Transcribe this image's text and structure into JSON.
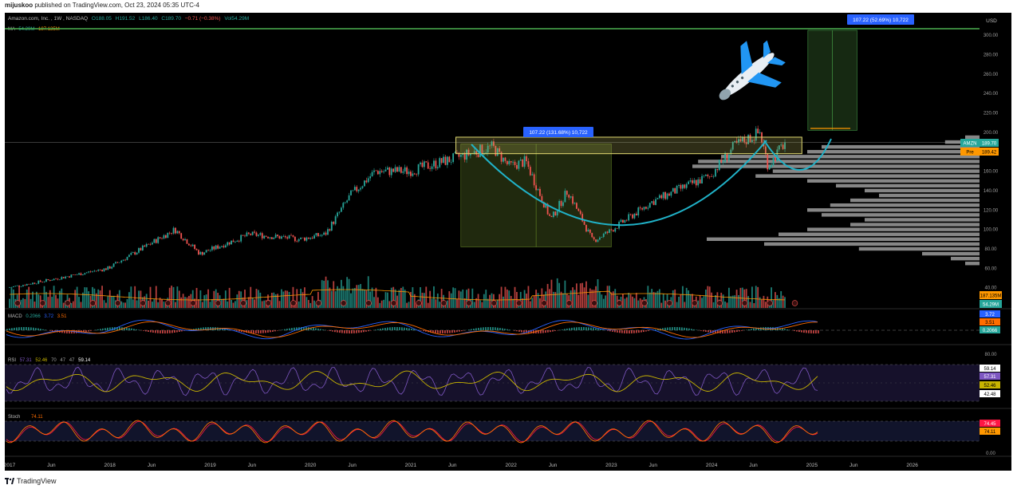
{
  "header": {
    "author": "mijuskoo",
    "published_text": "published on TradingView.com, Oct 23, 2024 05:35 UTC-4"
  },
  "footer": {
    "brand": "TradingView"
  },
  "colors": {
    "background": "#000000",
    "candle_up": "#26a69a",
    "candle_down": "#ef5350",
    "cup_curve": "#20b2c8",
    "range_box_fill": "#3a4a1a",
    "target_box_fill": "#1f3a1a",
    "resistance_box_stroke": "#c9c36a",
    "volume_profile": "#9e9e9e",
    "macd_line": "#2962ff",
    "signal_line": "#ff6d00",
    "rsi_line": "#7e57c2",
    "rsi_ma": "#c8b400",
    "stoch_k": "#ff6d00",
    "stoch_d": "#ff1744",
    "price_label_amzn": "#26a69a",
    "price_label_pre": "#ff9800"
  },
  "chart_data": {
    "type": "candlestick",
    "symbol_line": {
      "name": "Amazon.com, Inc.",
      "interval": "1W",
      "exchange": "NASDAQ",
      "open": "O188.05",
      "high": "H191.52",
      "low": "L186.40",
      "close": "C189.70",
      "change": "−0.71 (−0.38%)",
      "volume": "Vol54.29M"
    },
    "ma_legend": {
      "name": "MA",
      "v1": "54.29M",
      "v2": "187.135M"
    },
    "currency": "USD",
    "x_axis": {
      "labels": [
        "2017",
        "Jun",
        "2018",
        "Jun",
        "2019",
        "Jun",
        "2020",
        "Jun",
        "2021",
        "Jun",
        "2022",
        "Jun",
        "2023",
        "Jun",
        "2024",
        "Jun",
        "2025",
        "Jun",
        "2026"
      ],
      "range": [
        "2017-01",
        "2026-06"
      ]
    },
    "price_axis": {
      "ticks": [
        "300.00",
        "280.00",
        "260.00",
        "240.00",
        "220.00",
        "200.00",
        "180.00",
        "160.00",
        "140.00",
        "120.00",
        "100.00",
        "80.00",
        "60.00",
        "40.00"
      ],
      "range": [
        34,
        305
      ]
    },
    "price_series_weekly_close_approx": {
      "dates": [
        "2017-01",
        "2017-06",
        "2018-01",
        "2018-06",
        "2018-09",
        "2018-12",
        "2019-06",
        "2019-12",
        "2020-03",
        "2020-06",
        "2020-09",
        "2021-01",
        "2021-06",
        "2021-11",
        "2022-01",
        "2022-03",
        "2022-06",
        "2022-08",
        "2022-11",
        "2023-01",
        "2023-06",
        "2023-09",
        "2024-01",
        "2024-04",
        "2024-07",
        "2024-08",
        "2024-10"
      ],
      "values": [
        40,
        48,
        60,
        85,
        100,
        75,
        95,
        90,
        95,
        135,
        160,
        160,
        172,
        185,
        165,
        170,
        110,
        140,
        88,
        98,
        128,
        140,
        155,
        186,
        200,
        165,
        189.7
      ]
    },
    "annotations": {
      "measure_label_1": "107.22 (131.68%) 10,722",
      "measure_label_2": "107.22 (52.69%) 10,722",
      "resistance_zone": [
        178,
        195
      ],
      "cup_range_box_dates": [
        "2021-07",
        "2023-01"
      ],
      "cup_range_box_prices": [
        82,
        188
      ],
      "target_box_price": [
        202,
        305
      ],
      "icon": "airplane-icon"
    },
    "price_labels": [
      {
        "tag": "AMZN",
        "value": "189.70"
      },
      {
        "tag": "Pre",
        "value": "189.42"
      }
    ],
    "volume_labels": [
      {
        "value": "187.135M"
      },
      {
        "value": "54.29M"
      }
    ],
    "macd": {
      "legend": {
        "name": "MACD",
        "hist": "0.2066",
        "macd": "3.72",
        "signal": "3.51"
      },
      "axis_labels": [
        "3.72",
        "3.51",
        "0.2066"
      ]
    },
    "rsi": {
      "legend": {
        "name": "RSI",
        "v1": "57.31",
        "v2": "52.46",
        "v3": "70",
        "v4": "47",
        "v5": "47",
        "v6": "59.14"
      },
      "axis_ticks": [
        "80.00"
      ],
      "axis_labels": [
        "59.14",
        "57.31",
        "52.46",
        "42.48"
      ]
    },
    "stoch": {
      "legend": {
        "name": "Stoch",
        "k": "74.11"
      },
      "axis_ticks": [
        "0.00"
      ],
      "axis_labels": [
        "74.45",
        "74.11"
      ]
    },
    "volume_profile_price_levels": [
      195,
      190,
      185,
      180,
      175,
      170,
      165,
      160,
      155,
      150,
      145,
      140,
      135,
      130,
      125,
      120,
      115,
      110,
      105,
      100,
      95,
      90,
      85,
      80,
      75,
      70,
      65
    ],
    "volume_profile_relative": [
      0.05,
      0.12,
      0.55,
      0.6,
      0.9,
      0.98,
      1.0,
      0.72,
      0.78,
      0.6,
      0.5,
      0.4,
      0.35,
      0.45,
      0.52,
      0.6,
      0.55,
      0.4,
      0.45,
      0.6,
      0.7,
      0.95,
      0.75,
      0.42,
      0.2,
      0.1,
      0.05
    ]
  }
}
